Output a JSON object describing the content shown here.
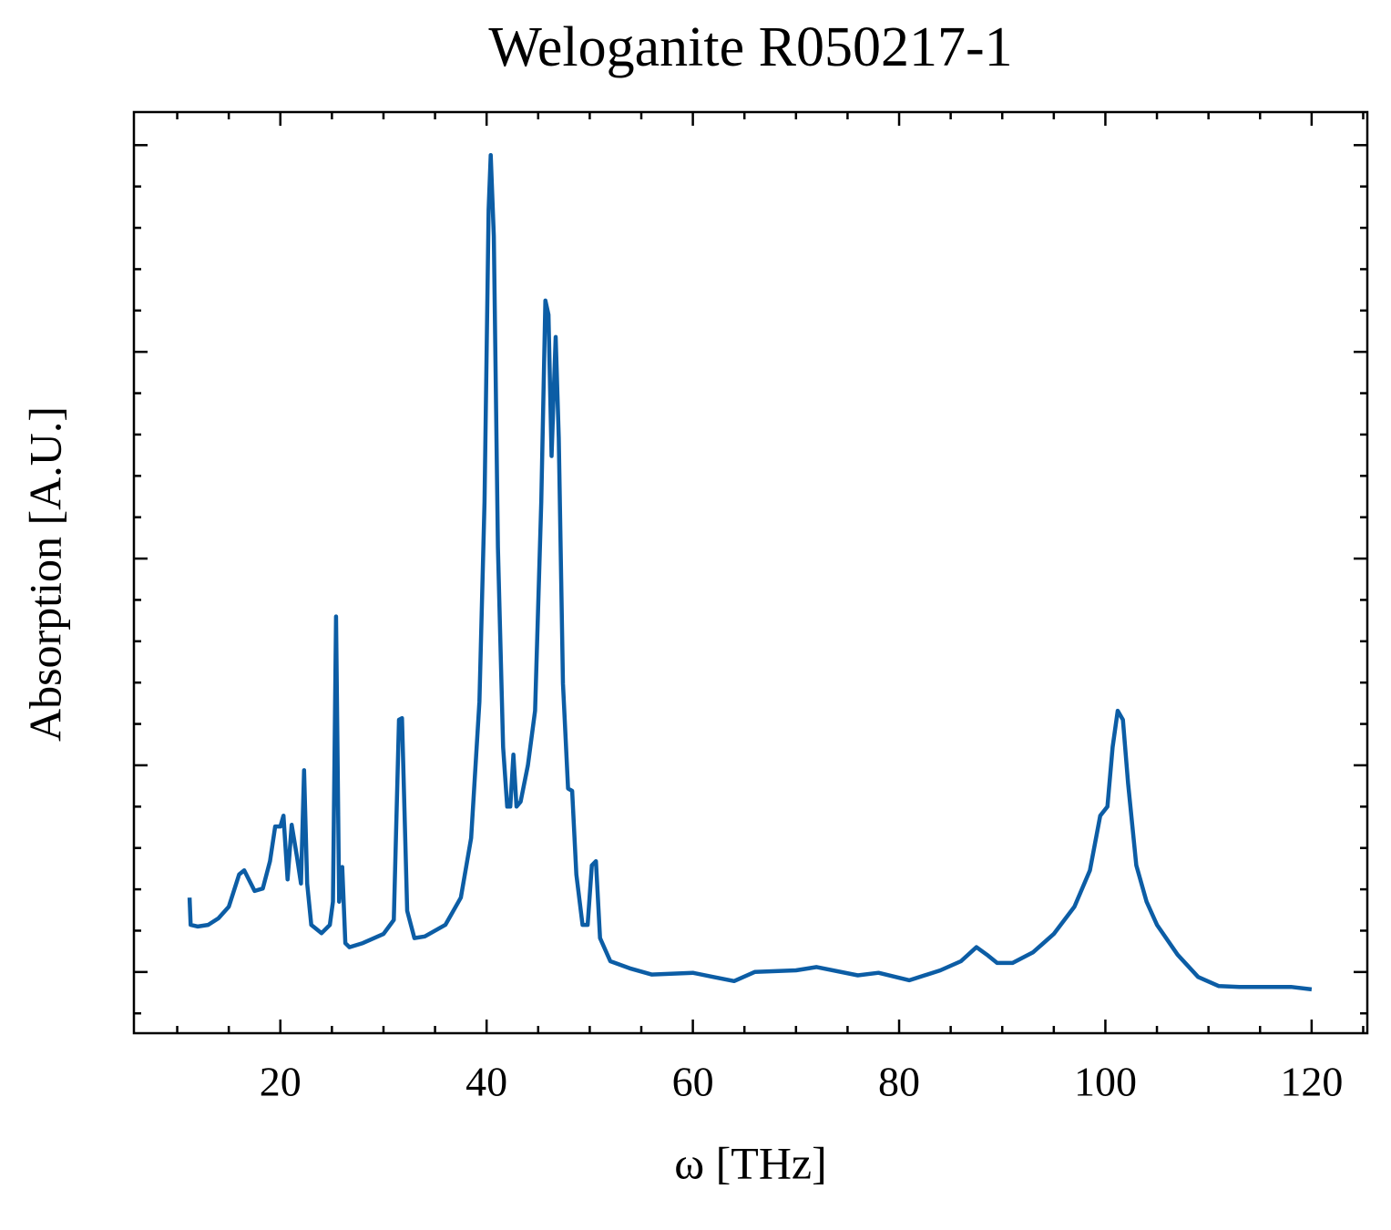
{
  "chart_data": {
    "type": "line",
    "title": "Weloganite R050217-1",
    "xlabel": "ω [THz]",
    "ylabel": "Absorption [A.U.]",
    "xlim": [
      5.8,
      125.4
    ],
    "ylim": [
      -0.074,
      1.04
    ],
    "xticks": [
      20,
      40,
      60,
      80,
      100,
      120
    ],
    "yticks": [
      0,
      0.25,
      0.5,
      0.75,
      1
    ],
    "xminorticks": [
      10,
      15,
      25,
      30,
      35,
      45,
      50,
      55,
      65,
      70,
      75,
      85,
      90,
      95,
      105,
      110,
      115,
      125
    ],
    "yminorticks": [
      -0.05,
      0.05,
      0.1,
      0.15,
      0.2,
      0.3,
      0.35,
      0.4,
      0.45,
      0.55,
      0.6,
      0.65,
      0.7,
      0.8,
      0.85,
      0.9,
      0.95
    ],
    "x": [
      11.2,
      11.3,
      12,
      13,
      14,
      15,
      16,
      16.5,
      17.5,
      18.3,
      19.0,
      19.5,
      20.0,
      20.3,
      20.7,
      21.1,
      21.6,
      22.0,
      22.3,
      22.6,
      23.0,
      24,
      24.8,
      25.1,
      25.4,
      25.7,
      26.0,
      26.3,
      26.7,
      28,
      30,
      31,
      31.5,
      31.8,
      32.3,
      33,
      34,
      36,
      37.5,
      38.5,
      39.3,
      39.8,
      40.2,
      40.4,
      40.7,
      41.1,
      41.6,
      42.0,
      42.3,
      42.6,
      42.9,
      43.3,
      44,
      44.7,
      45.3,
      45.7,
      46.0,
      46.3,
      46.7,
      47.0,
      47.4,
      47.9,
      48.3,
      48.7,
      49.3,
      49.8,
      50.2,
      50.6,
      51,
      52,
      54,
      56,
      60,
      62,
      64,
      66,
      70,
      72,
      76,
      78,
      80,
      81,
      84,
      86,
      87.5,
      88.5,
      89.5,
      91,
      93,
      95,
      97,
      98.5,
      99.5,
      100.2,
      100.7,
      101.2,
      101.7,
      102.2,
      103,
      104,
      105,
      107,
      109,
      111,
      113,
      116,
      118,
      120
    ],
    "series": [
      {
        "color": "#0c5da5",
        "values": [
          0.09,
          0.057,
          0.055,
          0.057,
          0.065,
          0.079,
          0.118,
          0.123,
          0.098,
          0.101,
          0.134,
          0.176,
          0.176,
          0.189,
          0.112,
          0.178,
          0.14,
          0.107,
          0.244,
          0.107,
          0.057,
          0.047,
          0.057,
          0.085,
          0.43,
          0.085,
          0.127,
          0.035,
          0.03,
          0.035,
          0.046,
          0.063,
          0.305,
          0.307,
          0.074,
          0.041,
          0.043,
          0.057,
          0.09,
          0.162,
          0.327,
          0.569,
          0.922,
          0.988,
          0.89,
          0.514,
          0.272,
          0.2,
          0.2,
          0.263,
          0.2,
          0.206,
          0.25,
          0.316,
          0.569,
          0.812,
          0.795,
          0.624,
          0.768,
          0.646,
          0.349,
          0.222,
          0.219,
          0.118,
          0.057,
          0.057,
          0.129,
          0.134,
          0.041,
          0.013,
          0.004,
          -0.003,
          -0.001,
          -0.006,
          -0.011,
          0,
          0.002,
          0.006,
          -0.004,
          -0.001,
          -0.007,
          -0.01,
          0.002,
          0.013,
          0.03,
          0.021,
          0.011,
          0.011,
          0.024,
          0.046,
          0.079,
          0.123,
          0.189,
          0.2,
          0.272,
          0.316,
          0.305,
          0.228,
          0.129,
          0.085,
          0.057,
          0.021,
          -0.006,
          -0.017,
          -0.018,
          -0.018,
          -0.018,
          -0.021
        ]
      }
    ]
  }
}
